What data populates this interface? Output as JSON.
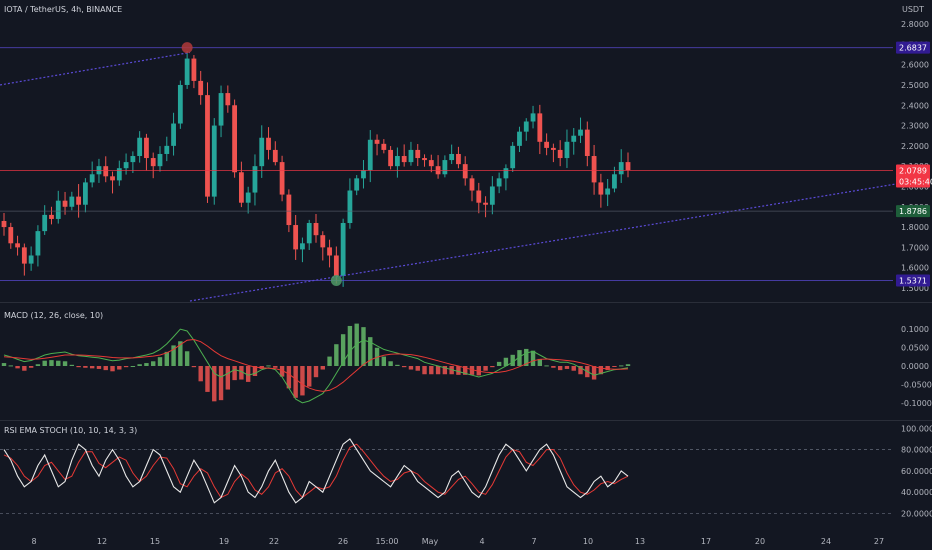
{
  "chart_data": {
    "type": "candlestick",
    "title": "IOTA / TetherUS, 4h, BINANCE",
    "currency": "USDT",
    "x_ticks": [
      "8",
      "12",
      "15",
      "19",
      "22",
      "26",
      "15:00",
      "May",
      "4",
      "7",
      "10",
      "13",
      "17",
      "20",
      "24",
      "27"
    ],
    "price_axis": {
      "ylim": [
        1.49,
        2.82
      ],
      "ticks": [
        "2.8000",
        "2.7000",
        "2.6000",
        "2.5000",
        "2.4000",
        "2.3000",
        "2.2000",
        "2.1000",
        "2.0000",
        "1.9000",
        "1.8000",
        "1.7000",
        "1.6000",
        "1.5000"
      ],
      "ticks_values": [
        2.8,
        2.7,
        2.6,
        2.5,
        2.4,
        2.3,
        2.2,
        2.1,
        2.0,
        1.9,
        1.8,
        1.7,
        1.6,
        1.5
      ]
    },
    "price_tags": [
      {
        "label": "2.6837",
        "value": 2.6837,
        "color": "#311b92"
      },
      {
        "label": "2.0789",
        "value": 2.0789,
        "color": "#f23645"
      },
      {
        "label": "03:45:40",
        "value": 2.0789,
        "color": "#f23645"
      },
      {
        "label": "1.8786",
        "value": 1.8786,
        "color": "#1e5e3a"
      },
      {
        "label": "1.5371",
        "value": 1.5371,
        "color": "#311b92"
      }
    ],
    "key_levels": [
      {
        "name": "high",
        "value": 2.6837,
        "color": "#5b4bd8"
      },
      {
        "name": "last",
        "value": 2.0789,
        "color": "#f23645"
      },
      {
        "name": "support",
        "value": 1.8786,
        "color": "#5a5f6e"
      },
      {
        "name": "low",
        "value": 1.5371,
        "color": "#5b4bd8"
      }
    ],
    "price_series": [
      1.8,
      1.72,
      1.7,
      1.62,
      1.66,
      1.78,
      1.86,
      1.84,
      1.93,
      1.9,
      1.95,
      1.91,
      2.02,
      2.06,
      2.1,
      2.05,
      2.03,
      2.09,
      2.12,
      2.15,
      2.24,
      2.14,
      2.1,
      2.16,
      2.2,
      2.31,
      2.5,
      2.63,
      2.52,
      2.45,
      1.95,
      2.3,
      2.46,
      2.4,
      2.07,
      1.92,
      1.97,
      2.1,
      2.24,
      2.18,
      2.12,
      1.96,
      1.81,
      1.69,
      1.72,
      1.82,
      1.76,
      1.7,
      1.66,
      1.56,
      1.82,
      1.98,
      2.04,
      2.08,
      2.23,
      2.21,
      2.18,
      2.1,
      2.15,
      2.12,
      2.18,
      2.14,
      2.13,
      2.1,
      2.06,
      2.13,
      2.16,
      2.11,
      2.04,
      1.98,
      1.92,
      1.91,
      2.0,
      2.04,
      2.09,
      2.2,
      2.27,
      2.32,
      2.36,
      2.22,
      2.19,
      2.18,
      2.14,
      2.22,
      2.25,
      2.28,
      2.15,
      2.02,
      1.96,
      1.99,
      2.06,
      2.12,
      2.08
    ],
    "indicators": [
      {
        "name": "MACD",
        "label": "MACD (12, 26, close, 10)",
        "ylim": [
          -0.125,
          0.125
        ],
        "ticks": [
          "0.1000",
          "0.0500",
          "0.0000",
          "-0.0500",
          "-0.1000"
        ],
        "ticks_values": [
          0.1,
          0.05,
          0.0,
          -0.05,
          -0.1
        ],
        "macd": [
          0.03,
          0.025,
          0.018,
          0.012,
          0.015,
          0.022,
          0.03,
          0.034,
          0.036,
          0.038,
          0.032,
          0.028,
          0.026,
          0.024,
          0.022,
          0.018,
          0.014,
          0.016,
          0.02,
          0.022,
          0.026,
          0.03,
          0.035,
          0.045,
          0.06,
          0.08,
          0.1,
          0.095,
          0.07,
          0.04,
          0.01,
          -0.02,
          -0.03,
          -0.02,
          -0.01,
          -0.015,
          -0.025,
          -0.02,
          -0.01,
          -0.005,
          -0.01,
          -0.03,
          -0.06,
          -0.09,
          -0.1,
          -0.095,
          -0.085,
          -0.075,
          -0.05,
          -0.02,
          0.01,
          0.04,
          0.06,
          0.07,
          0.065,
          0.055,
          0.045,
          0.04,
          0.035,
          0.03,
          0.025,
          0.02,
          0.01,
          0.005,
          0.0,
          -0.005,
          -0.01,
          -0.015,
          -0.02,
          -0.025,
          -0.03,
          -0.025,
          -0.02,
          -0.01,
          0.0,
          0.01,
          0.025,
          0.035,
          0.04,
          0.03,
          0.02,
          0.015,
          0.01,
          0.01,
          0.005,
          -0.005,
          -0.015,
          -0.025,
          -0.02,
          -0.015,
          -0.01,
          -0.008,
          -0.005
        ],
        "signal": [
          0.025,
          0.024,
          0.022,
          0.02,
          0.018,
          0.019,
          0.021,
          0.024,
          0.027,
          0.03,
          0.03,
          0.03,
          0.029,
          0.028,
          0.027,
          0.025,
          0.023,
          0.022,
          0.022,
          0.022,
          0.023,
          0.025,
          0.027,
          0.03,
          0.036,
          0.045,
          0.058,
          0.07,
          0.072,
          0.066,
          0.054,
          0.04,
          0.028,
          0.02,
          0.014,
          0.008,
          0.002,
          -0.003,
          -0.005,
          -0.006,
          -0.007,
          -0.012,
          -0.022,
          -0.036,
          -0.05,
          -0.06,
          -0.066,
          -0.069,
          -0.066,
          -0.057,
          -0.044,
          -0.028,
          -0.012,
          0.004,
          0.016,
          0.024,
          0.029,
          0.032,
          0.033,
          0.032,
          0.031,
          0.028,
          0.024,
          0.019,
          0.014,
          0.009,
          0.004,
          0.0,
          -0.005,
          -0.01,
          -0.014,
          -0.017,
          -0.018,
          -0.017,
          -0.014,
          -0.009,
          -0.002,
          0.006,
          0.014,
          0.018,
          0.019,
          0.018,
          0.017,
          0.015,
          0.013,
          0.009,
          0.004,
          -0.002,
          -0.006,
          -0.008,
          -0.009,
          -0.009,
          -0.008
        ]
      },
      {
        "name": "RSI EMA STOCH",
        "label": "RSI EMA STOCH (10, 10, 14, 3, 3)",
        "ylim": [
          12,
          104
        ],
        "ticks": [
          "100.0000",
          "80.0000",
          "60.0000",
          "40.0000",
          "20.0000"
        ],
        "ticks_values": [
          100,
          80,
          60,
          40,
          20
        ],
        "levels": [
          80,
          20
        ],
        "k": [
          80,
          70,
          55,
          45,
          50,
          65,
          75,
          60,
          45,
          50,
          70,
          85,
          80,
          65,
          55,
          70,
          80,
          70,
          55,
          45,
          50,
          65,
          80,
          75,
          60,
          45,
          40,
          55,
          70,
          60,
          45,
          30,
          35,
          50,
          65,
          55,
          40,
          35,
          45,
          60,
          70,
          55,
          40,
          30,
          35,
          50,
          45,
          40,
          55,
          70,
          85,
          90,
          80,
          70,
          60,
          55,
          50,
          45,
          55,
          65,
          60,
          50,
          45,
          40,
          35,
          40,
          55,
          60,
          50,
          40,
          35,
          45,
          60,
          75,
          85,
          80,
          70,
          60,
          70,
          80,
          85,
          75,
          60,
          45,
          40,
          35,
          40,
          50,
          55,
          45,
          50,
          60,
          55
        ],
        "d": [
          75,
          72,
          65,
          55,
          50,
          55,
          65,
          68,
          60,
          52,
          55,
          68,
          78,
          78,
          67,
          63,
          68,
          73,
          70,
          58,
          50,
          55,
          65,
          73,
          72,
          62,
          48,
          45,
          55,
          62,
          58,
          45,
          35,
          38,
          50,
          57,
          52,
          42,
          38,
          45,
          58,
          62,
          55,
          42,
          35,
          40,
          45,
          43,
          45,
          55,
          70,
          82,
          85,
          78,
          70,
          62,
          55,
          50,
          52,
          58,
          60,
          57,
          50,
          45,
          40,
          38,
          45,
          52,
          55,
          48,
          40,
          38,
          47,
          60,
          73,
          80,
          78,
          68,
          65,
          72,
          80,
          80,
          72,
          58,
          47,
          40,
          38,
          42,
          48,
          50,
          48,
          52,
          55
        ]
      }
    ]
  }
}
